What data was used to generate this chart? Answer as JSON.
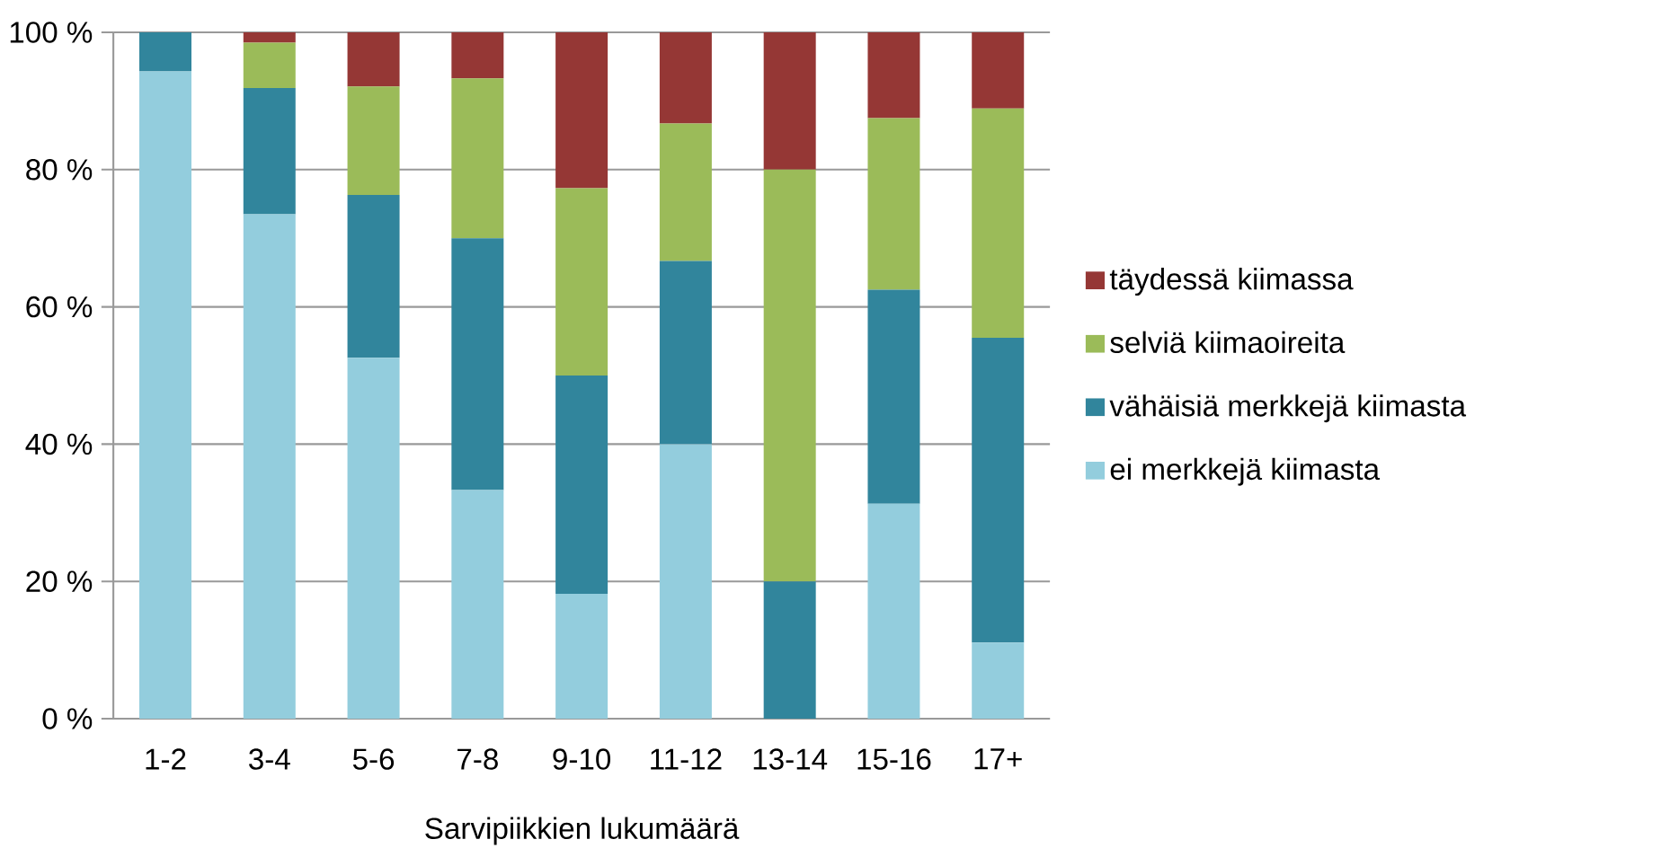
{
  "chart_data": {
    "type": "bar",
    "stacked": true,
    "xlabel": "Sarvipiikkien lukumäärä",
    "categories": [
      "1-2",
      "3-4",
      "5-6",
      "7-8",
      "9-10",
      "11-12",
      "13-14",
      "15-16",
      "17+"
    ],
    "series": [
      {
        "name": "ei merkkejä kiimasta",
        "color": "#93cddd",
        "values": [
          94.3,
          73.5,
          52.6,
          33.3,
          18.2,
          40.0,
          0,
          31.3,
          11.1
        ]
      },
      {
        "name": "vähäisiä merkkejä kiimasta",
        "color": "#31859c",
        "values": [
          5.7,
          18.4,
          23.7,
          36.7,
          31.8,
          26.7,
          20.0,
          31.2,
          44.4
        ]
      },
      {
        "name": "selviä kiimaoireita",
        "color": "#9bbb59",
        "values": [
          0,
          6.6,
          15.8,
          23.3,
          27.3,
          20.0,
          60.0,
          25.0,
          33.4
        ]
      },
      {
        "name": "täydessä kiimassa",
        "color": "#953735",
        "values": [
          0,
          1.5,
          7.9,
          6.7,
          22.7,
          13.3,
          20.0,
          12.5,
          11.1
        ]
      }
    ],
    "ylim": [
      0,
      100
    ],
    "yticks": [
      {
        "value": 0,
        "label": "0 %"
      },
      {
        "value": 20,
        "label": "20 %"
      },
      {
        "value": 40,
        "label": "40 %"
      },
      {
        "value": 60,
        "label": "60 %"
      },
      {
        "value": 80,
        "label": "80 %"
      },
      {
        "value": 100,
        "label": "100 %"
      }
    ],
    "grid": "y",
    "legend": "right"
  }
}
